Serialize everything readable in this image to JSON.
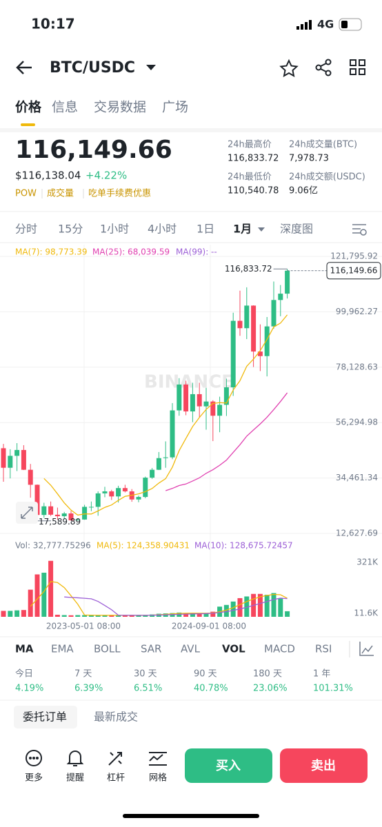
{
  "status": {
    "time": "10:17",
    "network": "4G"
  },
  "header": {
    "pair": "BTC/USDC"
  },
  "tabs": [
    "价格",
    "信息",
    "交易数据",
    "广场"
  ],
  "price": {
    "last": "116,149.66",
    "fiat": "$116,138.04",
    "change": "+4.22%",
    "tags": [
      "POW",
      "成交量",
      "吃单手续费优惠"
    ]
  },
  "stats": [
    {
      "label": "24h最高价",
      "value": "116,833.72"
    },
    {
      "label": "24h成交量(BTC)",
      "value": "7,978.73"
    },
    {
      "label": "24h最低价",
      "value": "110,540.78"
    },
    {
      "label": "24h成交额(USDC)",
      "value": "9.06亿"
    }
  ],
  "intervals": [
    "分时",
    "15分",
    "1小时",
    "4小时",
    "1日",
    "1月",
    "深度图"
  ],
  "chart": {
    "type": "candlestick",
    "watermark": "BINANCE",
    "ma": [
      "MA(7): 98,773.39",
      "MA(25): 68,039.59",
      "MA(99): --"
    ],
    "ylim": [
      12627.69,
      121795.92
    ],
    "yticks": [
      {
        "value": 121795.92,
        "label": "121,795.92"
      },
      {
        "value": 99962.27,
        "label": "99,962.27"
      },
      {
        "value": 78128.63,
        "label": "78,128.63"
      },
      {
        "value": 56294.98,
        "label": "56,294.98"
      },
      {
        "value": 34461.34,
        "label": "34,461.34"
      },
      {
        "value": 12627.69,
        "label": "12,627.69"
      }
    ],
    "high_label": "116,833.72",
    "low_label": "17,589.89",
    "last_label": "116,149.66",
    "candles": [
      {
        "open": 46200,
        "high": 47900,
        "low": 33000,
        "close": 38500
      },
      {
        "open": 38500,
        "high": 45800,
        "low": 34300,
        "close": 43200
      },
      {
        "open": 43200,
        "high": 48200,
        "low": 37200,
        "close": 45500
      },
      {
        "open": 45500,
        "high": 47400,
        "low": 37600,
        "close": 37700
      },
      {
        "open": 37700,
        "high": 40000,
        "low": 26700,
        "close": 31800
      },
      {
        "open": 31800,
        "high": 31900,
        "low": 17589.89,
        "close": 19900
      },
      {
        "open": 19900,
        "high": 24700,
        "low": 18800,
        "close": 23300
      },
      {
        "open": 23300,
        "high": 25200,
        "low": 19500,
        "close": 20000
      },
      {
        "open": 20000,
        "high": 22800,
        "low": 18100,
        "close": 19400
      },
      {
        "open": 19400,
        "high": 21100,
        "low": 18200,
        "close": 20500
      },
      {
        "open": 20500,
        "high": 21500,
        "low": 17650,
        "close": 17800
      },
      {
        "open": 17800,
        "high": 18500,
        "low": 17700,
        "close": 18100
      },
      {
        "open": 18100,
        "high": 23900,
        "low": 18000,
        "close": 23100
      },
      {
        "open": 23100,
        "high": 25200,
        "low": 21400,
        "close": 23100
      },
      {
        "open": 23100,
        "high": 29200,
        "low": 19600,
        "close": 28400
      },
      {
        "open": 28400,
        "high": 31000,
        "low": 26900,
        "close": 29200
      },
      {
        "open": 29200,
        "high": 29800,
        "low": 25800,
        "close": 27200
      },
      {
        "open": 27200,
        "high": 31400,
        "low": 24800,
        "close": 30500
      },
      {
        "open": 30500,
        "high": 31800,
        "low": 28800,
        "close": 29200
      },
      {
        "open": 29200,
        "high": 30100,
        "low": 25100,
        "close": 26000
      },
      {
        "open": 26000,
        "high": 27500,
        "low": 24900,
        "close": 27000
      },
      {
        "open": 27000,
        "high": 35000,
        "low": 26500,
        "close": 34600
      },
      {
        "open": 34600,
        "high": 38400,
        "low": 34100,
        "close": 37700
      },
      {
        "open": 37700,
        "high": 44700,
        "low": 37600,
        "close": 42300
      },
      {
        "open": 42300,
        "high": 48900,
        "low": 38500,
        "close": 42600
      },
      {
        "open": 42600,
        "high": 64000,
        "low": 41900,
        "close": 61100
      },
      {
        "open": 61100,
        "high": 73800,
        "low": 59000,
        "close": 71300
      },
      {
        "open": 71300,
        "high": 72800,
        "low": 59200,
        "close": 60700
      },
      {
        "open": 60700,
        "high": 72000,
        "low": 56500,
        "close": 67500
      },
      {
        "open": 67500,
        "high": 72000,
        "low": 58400,
        "close": 62700
      },
      {
        "open": 62700,
        "high": 70000,
        "low": 53500,
        "close": 64600
      },
      {
        "open": 64600,
        "high": 65100,
        "low": 49000,
        "close": 59000
      },
      {
        "open": 59000,
        "high": 66500,
        "low": 52500,
        "close": 63300
      },
      {
        "open": 63300,
        "high": 73600,
        "low": 58900,
        "close": 70200
      },
      {
        "open": 70200,
        "high": 99600,
        "low": 66800,
        "close": 96400
      },
      {
        "open": 96400,
        "high": 108300,
        "low": 90500,
        "close": 93500
      },
      {
        "open": 93500,
        "high": 109600,
        "low": 89200,
        "close": 102400
      },
      {
        "open": 102400,
        "high": 102500,
        "low": 78200,
        "close": 84300
      },
      {
        "open": 84300,
        "high": 95000,
        "low": 76600,
        "close": 82500
      },
      {
        "open": 82500,
        "high": 97900,
        "low": 74500,
        "close": 94200
      },
      {
        "open": 94200,
        "high": 111900,
        "low": 93300,
        "close": 104600
      },
      {
        "open": 104600,
        "high": 110500,
        "low": 98200,
        "close": 107100
      },
      {
        "open": 107100,
        "high": 116833.72,
        "low": 105200,
        "close": 116149.66
      }
    ],
    "vol_header": [
      "Vol: 32,777.75296",
      "MA(5): 124,358.90431",
      "MA(10): 128,675.72457"
    ],
    "vol_ylim": [
      0,
      321000
    ],
    "vol_ticks": [
      {
        "value": 321000,
        "label": "321K"
      },
      {
        "value": 11600,
        "label": "11.6K"
      }
    ],
    "volumes": [
      35000,
      35000,
      38000,
      40000,
      160000,
      250000,
      260000,
      330000,
      12000,
      10000,
      9000,
      10000,
      10000,
      9000,
      8000,
      9000,
      9000,
      10000,
      8000,
      9000,
      8000,
      12000,
      14000,
      18000,
      20000,
      22000,
      25000,
      20000,
      22000,
      18000,
      20000,
      30000,
      60000,
      70000,
      90000,
      110000,
      120000,
      135000,
      135000,
      130000,
      140000,
      110000,
      32777.75296
    ],
    "xlabels": [
      "2023-05-01 08:00",
      "2024-09-01 08:00"
    ]
  },
  "indicators": [
    "MA",
    "EMA",
    "BOLL",
    "SAR",
    "AVL",
    "VOL",
    "MACD",
    "RSI"
  ],
  "performance": [
    {
      "label": "今日",
      "value": "4.19%"
    },
    {
      "label": "7 天",
      "value": "6.39%"
    },
    {
      "label": "30 天",
      "value": "6.51%"
    },
    {
      "label": "90 天",
      "value": "40.78%"
    },
    {
      "label": "180 天",
      "value": "23.06%"
    },
    {
      "label": "1 年",
      "value": "101.31%"
    }
  ],
  "order_tabs": [
    "委托订单",
    "最新成交"
  ],
  "actions": [
    "更多",
    "提醒",
    "杠杆",
    "网格"
  ],
  "buy": "买入",
  "sell": "卖出"
}
